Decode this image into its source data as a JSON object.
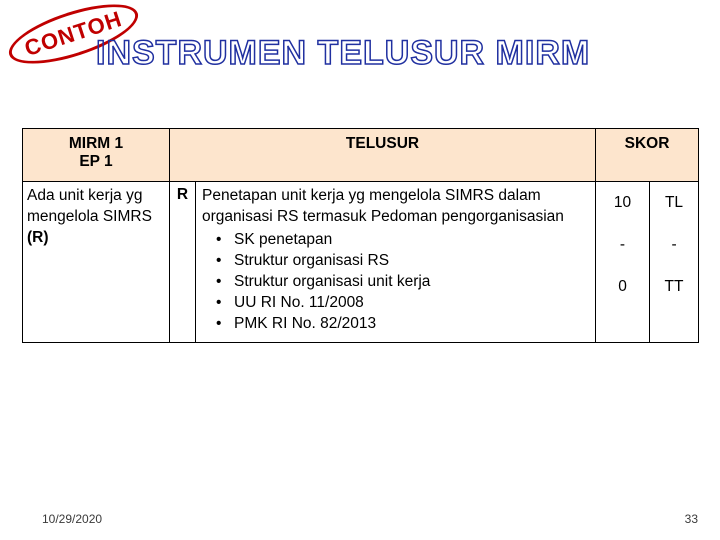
{
  "badge": {
    "text": "CONTOH",
    "border_color": "#c00000",
    "text_color": "#c00000"
  },
  "title": {
    "text": "INSTRUMEN TELUSUR MIRM",
    "stroke_color": "#2030a0"
  },
  "table": {
    "header_bg": "#fde5cd",
    "headers": {
      "col0": "MIRM 1\nEP 1",
      "col_mid": "TELUSUR",
      "col_skor": "SKOR"
    },
    "row": {
      "col0_text": "Ada unit kerja yg mengelola SIMRS",
      "col0_bold_suffix": "(R)",
      "r_label": "R",
      "desc_main": "Penetapan unit kerja yg mengelola SIMRS dalam organisasi RS termasuk Pedoman pengorganisasian",
      "bullets": [
        "SK penetapan",
        "Struktur organisasi RS",
        "Struktur organisasi unit kerja",
        "UU RI No. 11/2008",
        "PMK RI No. 82/2013"
      ],
      "scores": [
        {
          "num": "10",
          "code": "TL"
        },
        {
          "num": "-",
          "code": "-"
        },
        {
          "num": "0",
          "code": "TT"
        }
      ]
    }
  },
  "footer": {
    "date": "10/29/2020",
    "page": "33"
  }
}
